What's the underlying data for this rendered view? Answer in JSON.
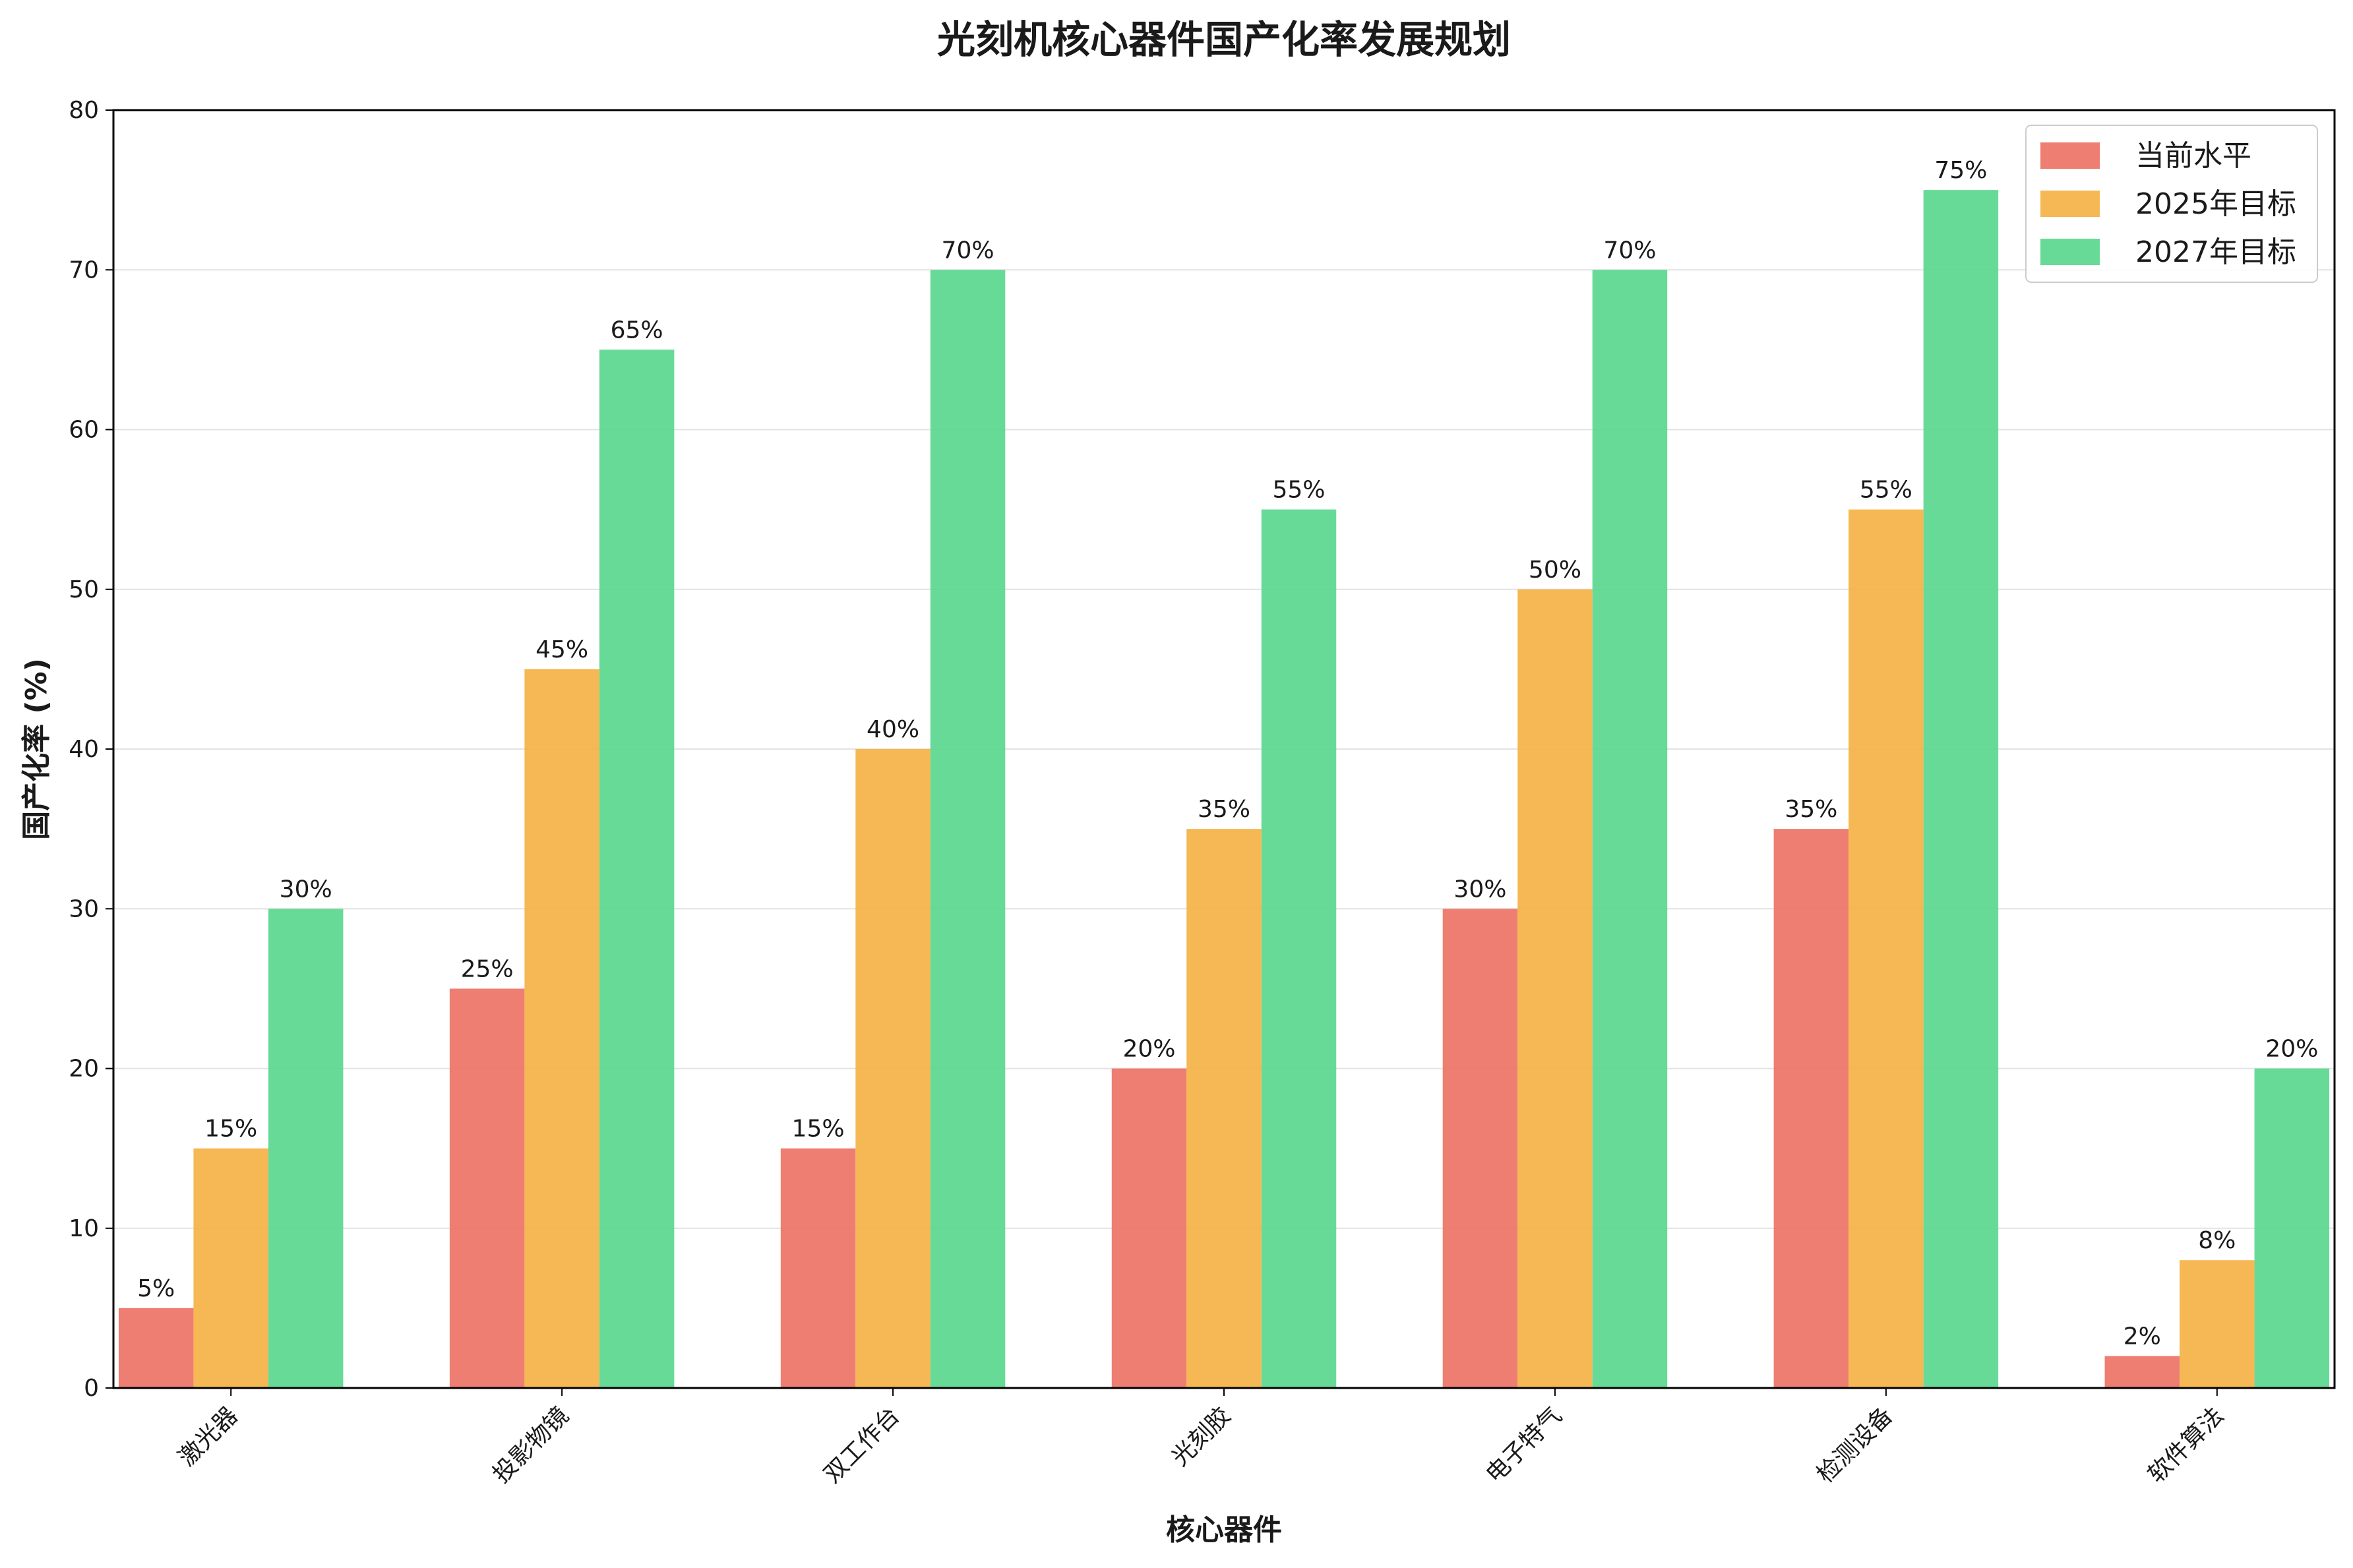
{
  "chart_data": {
    "type": "bar",
    "title": "光刻机核心器件国产化率发展规划",
    "xlabel": "核心器件",
    "ylabel": "国产化率 (%)",
    "ylim": [
      0,
      80
    ],
    "yticks": [
      0,
      10,
      20,
      30,
      40,
      50,
      60,
      70,
      80
    ],
    "grid": "horizontal",
    "legend_position": "top-right",
    "categories": [
      "激光器",
      "投影物镜",
      "双工作台",
      "光刻胶",
      "电子特气",
      "检测设备",
      "软件算法"
    ],
    "series": [
      {
        "name": "当前水平",
        "color": "#ec7063",
        "values": [
          5,
          25,
          15,
          20,
          30,
          35,
          2
        ]
      },
      {
        "name": "2025年目标",
        "color": "#f5b041",
        "values": [
          15,
          45,
          40,
          35,
          50,
          55,
          8
        ]
      },
      {
        "name": "2027年目标",
        "color": "#58d68d",
        "values": [
          30,
          65,
          70,
          55,
          70,
          75,
          20
        ]
      }
    ],
    "value_label_suffix": "%"
  }
}
